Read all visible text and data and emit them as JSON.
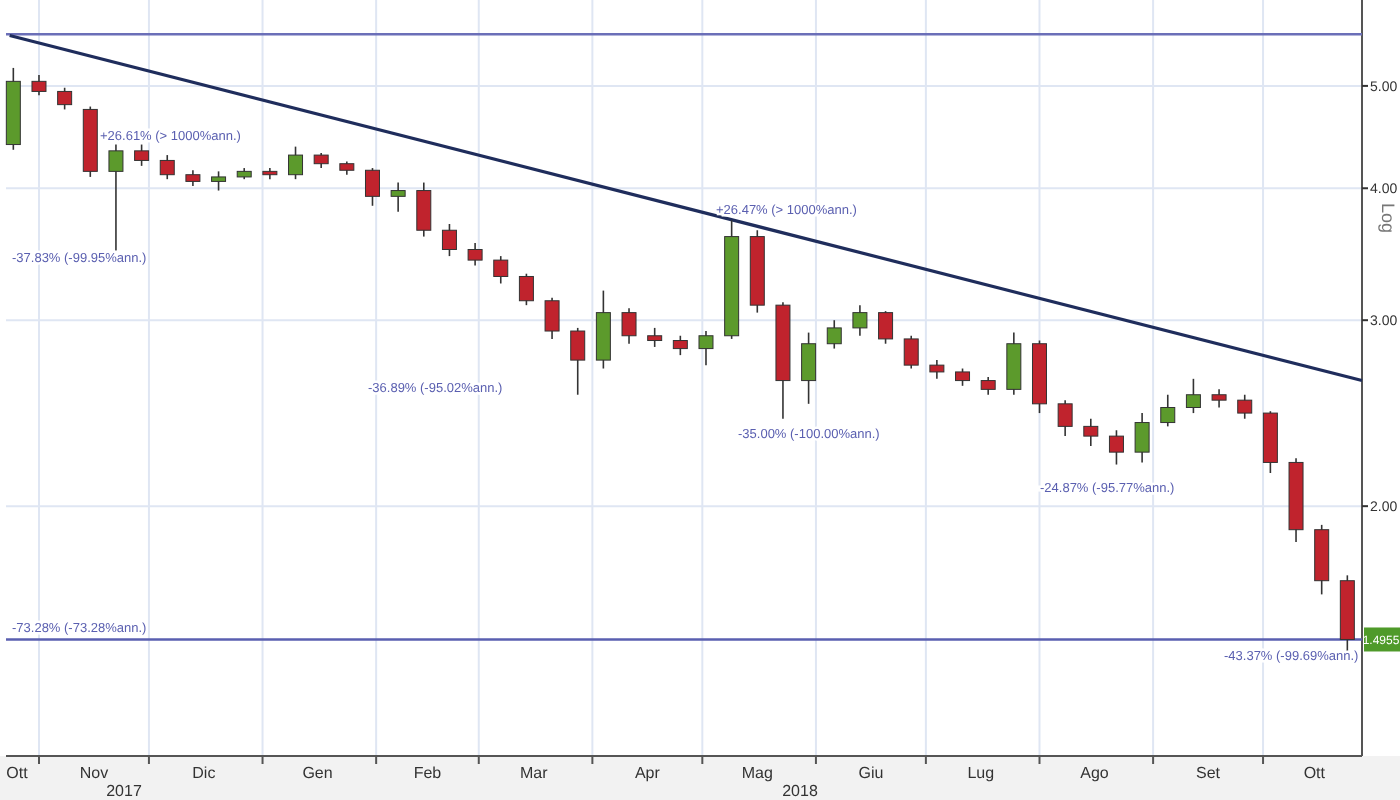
{
  "chart_data": {
    "type": "candlestick",
    "ylabel": "Log",
    "log": "y",
    "grid": true,
    "x": [
      "2017-10-25",
      "2017-11-01",
      "2017-11-08",
      "2017-11-15",
      "2017-11-22",
      "2017-11-29",
      "2017-12-06",
      "2017-12-13",
      "2017-12-20",
      "2017-12-27",
      "2018-01-03",
      "2018-01-10",
      "2018-01-17",
      "2018-01-24",
      "2018-01-31",
      "2018-02-07",
      "2018-02-14",
      "2018-02-21",
      "2018-02-28",
      "2018-03-07",
      "2018-03-14",
      "2018-03-21",
      "2018-03-28",
      "2018-04-04",
      "2018-04-11",
      "2018-04-18",
      "2018-04-25",
      "2018-05-02",
      "2018-05-09",
      "2018-05-16",
      "2018-05-23",
      "2018-05-30",
      "2018-06-06",
      "2018-06-13",
      "2018-06-20",
      "2018-06-27",
      "2018-07-04",
      "2018-07-11",
      "2018-07-18",
      "2018-07-25",
      "2018-08-01",
      "2018-08-08",
      "2018-08-15",
      "2018-08-22",
      "2018-08-29",
      "2018-09-05",
      "2018-09-12",
      "2018-09-19",
      "2018-09-26",
      "2018-10-03",
      "2018-10-10",
      "2018-10-17",
      "2018-10-24"
    ],
    "ohlc": [
      [
        4.4,
        5.2,
        4.35,
        5.05
      ],
      [
        5.05,
        5.12,
        4.9,
        4.94
      ],
      [
        4.94,
        4.98,
        4.75,
        4.8
      ],
      [
        4.75,
        4.78,
        4.1,
        4.15
      ],
      [
        4.15,
        4.4,
        3.48,
        4.34
      ],
      [
        4.34,
        4.4,
        4.2,
        4.25
      ],
      [
        4.25,
        4.3,
        4.08,
        4.12
      ],
      [
        4.12,
        4.16,
        4.02,
        4.06
      ],
      [
        4.06,
        4.15,
        3.98,
        4.1
      ],
      [
        4.1,
        4.18,
        4.08,
        4.15
      ],
      [
        4.15,
        4.18,
        4.08,
        4.12
      ],
      [
        4.12,
        4.38,
        4.08,
        4.3
      ],
      [
        4.3,
        4.32,
        4.18,
        4.22
      ],
      [
        4.22,
        4.24,
        4.12,
        4.16
      ],
      [
        4.16,
        4.18,
        3.85,
        3.93
      ],
      [
        3.93,
        4.05,
        3.8,
        3.98
      ],
      [
        3.98,
        4.05,
        3.6,
        3.65
      ],
      [
        3.65,
        3.7,
        3.45,
        3.5
      ],
      [
        3.5,
        3.55,
        3.38,
        3.42
      ],
      [
        3.42,
        3.45,
        3.25,
        3.3
      ],
      [
        3.3,
        3.32,
        3.1,
        3.13
      ],
      [
        3.13,
        3.15,
        2.88,
        2.93
      ],
      [
        2.93,
        2.95,
        2.55,
        2.75
      ],
      [
        2.75,
        3.2,
        2.7,
        3.05
      ],
      [
        3.05,
        3.08,
        2.85,
        2.9
      ],
      [
        2.9,
        2.95,
        2.83,
        2.87
      ],
      [
        2.87,
        2.9,
        2.78,
        2.82
      ],
      [
        2.82,
        2.93,
        2.72,
        2.9
      ],
      [
        2.9,
        3.73,
        2.88,
        3.6
      ],
      [
        3.6,
        3.65,
        3.05,
        3.1
      ],
      [
        3.1,
        3.12,
        2.42,
        2.63
      ],
      [
        2.63,
        2.92,
        2.5,
        2.85
      ],
      [
        2.85,
        3.0,
        2.82,
        2.95
      ],
      [
        2.95,
        3.1,
        2.9,
        3.05
      ],
      [
        3.05,
        3.06,
        2.85,
        2.88
      ],
      [
        2.88,
        2.9,
        2.7,
        2.72
      ],
      [
        2.72,
        2.75,
        2.64,
        2.68
      ],
      [
        2.68,
        2.7,
        2.6,
        2.63
      ],
      [
        2.63,
        2.65,
        2.55,
        2.58
      ],
      [
        2.58,
        2.92,
        2.55,
        2.85
      ],
      [
        2.85,
        2.87,
        2.45,
        2.5
      ],
      [
        2.5,
        2.52,
        2.33,
        2.38
      ],
      [
        2.38,
        2.42,
        2.28,
        2.33
      ],
      [
        2.33,
        2.36,
        2.19,
        2.25
      ],
      [
        2.25,
        2.45,
        2.2,
        2.4
      ],
      [
        2.4,
        2.55,
        2.38,
        2.48
      ],
      [
        2.48,
        2.64,
        2.45,
        2.55
      ],
      [
        2.55,
        2.58,
        2.48,
        2.52
      ],
      [
        2.52,
        2.55,
        2.42,
        2.45
      ],
      [
        2.45,
        2.46,
        2.15,
        2.2
      ],
      [
        2.2,
        2.22,
        1.85,
        1.9
      ],
      [
        1.9,
        1.92,
        1.65,
        1.7
      ],
      [
        1.7,
        1.72,
        1.45,
        1.4955
      ]
    ],
    "series": [
      {
        "type": "line",
        "color": "#1f2d5c",
        "x": [
          "2017-10-24",
          "2018-10-28"
        ],
        "values": [
          5.58,
          2.63
        ]
      }
    ],
    "xlim": [
      "2017-10-23",
      "2018-10-28"
    ],
    "xticks": [
      {
        "value": "2017-11-01",
        "label": null
      },
      {
        "value": "2017-12-01",
        "label": null
      },
      {
        "value": "2018-01-01",
        "label": null
      },
      {
        "value": "2018-02-01",
        "label": null
      },
      {
        "value": "2018-03-01",
        "label": null
      },
      {
        "value": "2018-04-01",
        "label": null
      },
      {
        "value": "2018-05-01",
        "label": null
      },
      {
        "value": "2018-06-01",
        "label": null
      },
      {
        "value": "2018-07-01",
        "label": null
      },
      {
        "value": "2018-08-01",
        "label": null
      },
      {
        "value": "2018-09-01",
        "label": null
      },
      {
        "value": "2018-10-01",
        "label": null
      },
      {
        "value": "2017-10-26",
        "label": "Ott"
      },
      {
        "value": "2017-11-16",
        "label": "Nov"
      },
      {
        "value": "2017-12-16",
        "label": "Dic"
      },
      {
        "value": "2018-01-16",
        "label": "Gen"
      },
      {
        "value": "2018-02-15",
        "label": "Feb"
      },
      {
        "value": "2018-03-16",
        "label": "Mar"
      },
      {
        "value": "2018-04-16",
        "label": "Apr"
      },
      {
        "value": "2018-05-16",
        "label": "Mag"
      },
      {
        "value": "2018-06-16",
        "label": "Giu"
      },
      {
        "value": "2018-07-16",
        "label": "Lug"
      },
      {
        "value": "2018-08-16",
        "label": "Ago"
      },
      {
        "value": "2018-09-16",
        "label": "Set"
      },
      {
        "value": "2018-10-15",
        "label": "Ott"
      }
    ],
    "ylim": [
      1.16,
      6.03
    ],
    "yticks": [
      {
        "value": 2,
        "label": "2.00"
      },
      {
        "value": 3,
        "label": "3.00"
      },
      {
        "value": 4,
        "label": "4.00"
      },
      {
        "value": 5,
        "label": "5.00"
      }
    ],
    "ref_lines": [
      {
        "axis": "y",
        "value": 5.597,
        "color": "#6b6fb8"
      },
      {
        "axis": "y",
        "value": 1.4955,
        "label": "1.4955",
        "color": "#5a5fb0"
      }
    ],
    "annotations": [
      "-37.83% (-99.95%ann.)",
      "+26.61% (> 1000%ann.)",
      "-36.89% (-95.02%ann.)",
      "+26.47% (> 1000%ann.)",
      "-35.00% (-100.00%ann.)",
      "-24.87% (-95.77%ann.)",
      "-43.37% (-99.69%ann.)",
      "-73.28% (-73.28%ann.)",
      "2017",
      "2018"
    ]
  }
}
